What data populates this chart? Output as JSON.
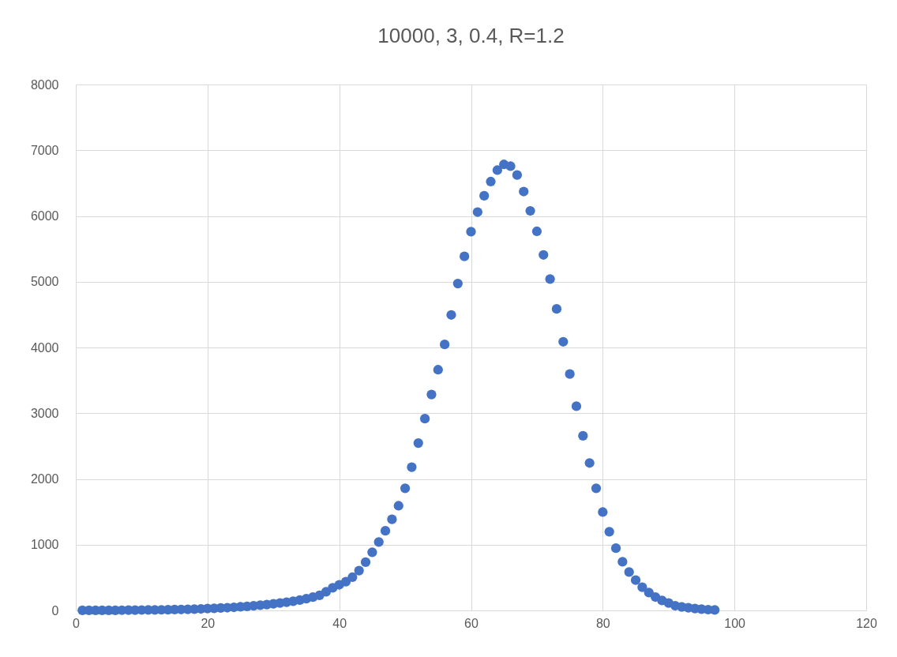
{
  "chart_data": {
    "type": "scatter",
    "title": "10000, 3, 0.4, R=1.2",
    "x": [
      1,
      2,
      3,
      4,
      5,
      6,
      7,
      8,
      9,
      10,
      11,
      12,
      13,
      14,
      15,
      16,
      17,
      18,
      19,
      20,
      21,
      22,
      23,
      24,
      25,
      26,
      27,
      28,
      29,
      30,
      31,
      32,
      33,
      34,
      35,
      36,
      37,
      38,
      39,
      40,
      41,
      42,
      43,
      44,
      45,
      46,
      47,
      48,
      49,
      50,
      51,
      52,
      53,
      54,
      55,
      56,
      57,
      58,
      59,
      60,
      61,
      62,
      63,
      64,
      65,
      66,
      67,
      68,
      69,
      70,
      71,
      72,
      73,
      74,
      75,
      76,
      77,
      78,
      79,
      80,
      81,
      82,
      83,
      84,
      85,
      86,
      87,
      88,
      89,
      90,
      91,
      92,
      93,
      94,
      95,
      96,
      97
    ],
    "series": [
      {
        "color": "#4472c4",
        "values": [
          1,
          1,
          1,
          2,
          2,
          2,
          3,
          4,
          5,
          6,
          7,
          8,
          9,
          11,
          13,
          15,
          17,
          20,
          24,
          28,
          32,
          37,
          42,
          48,
          55,
          62,
          70,
          79,
          89,
          100,
          112,
          125,
          140,
          157,
          178,
          202,
          229,
          284,
          344,
          390,
          436,
          505,
          606,
          734,
          885,
          1041,
          1211,
          1385,
          1592,
          1858,
          2179,
          2546,
          2917,
          3284,
          3661,
          4046,
          4495,
          4972,
          5385,
          5761,
          6060,
          6307,
          6523,
          6697,
          6784,
          6757,
          6624,
          6372,
          6078,
          5766,
          5408,
          5041,
          4587,
          4087,
          3596,
          3106,
          2656,
          2243,
          1858,
          1496,
          1197,
          947,
          740,
          584,
          460,
          352,
          272,
          204,
          152,
          112,
          72,
          52,
          40,
          28,
          20,
          12,
          8
        ]
      }
    ],
    "xlim": [
      0,
      120
    ],
    "xticks": [
      0,
      20,
      40,
      60,
      80,
      100,
      120
    ],
    "ylim": [
      0,
      8000
    ],
    "yticks": [
      0,
      1000,
      2000,
      3000,
      4000,
      5000,
      6000,
      7000,
      8000
    ],
    "grid": true,
    "marker": "circle"
  }
}
